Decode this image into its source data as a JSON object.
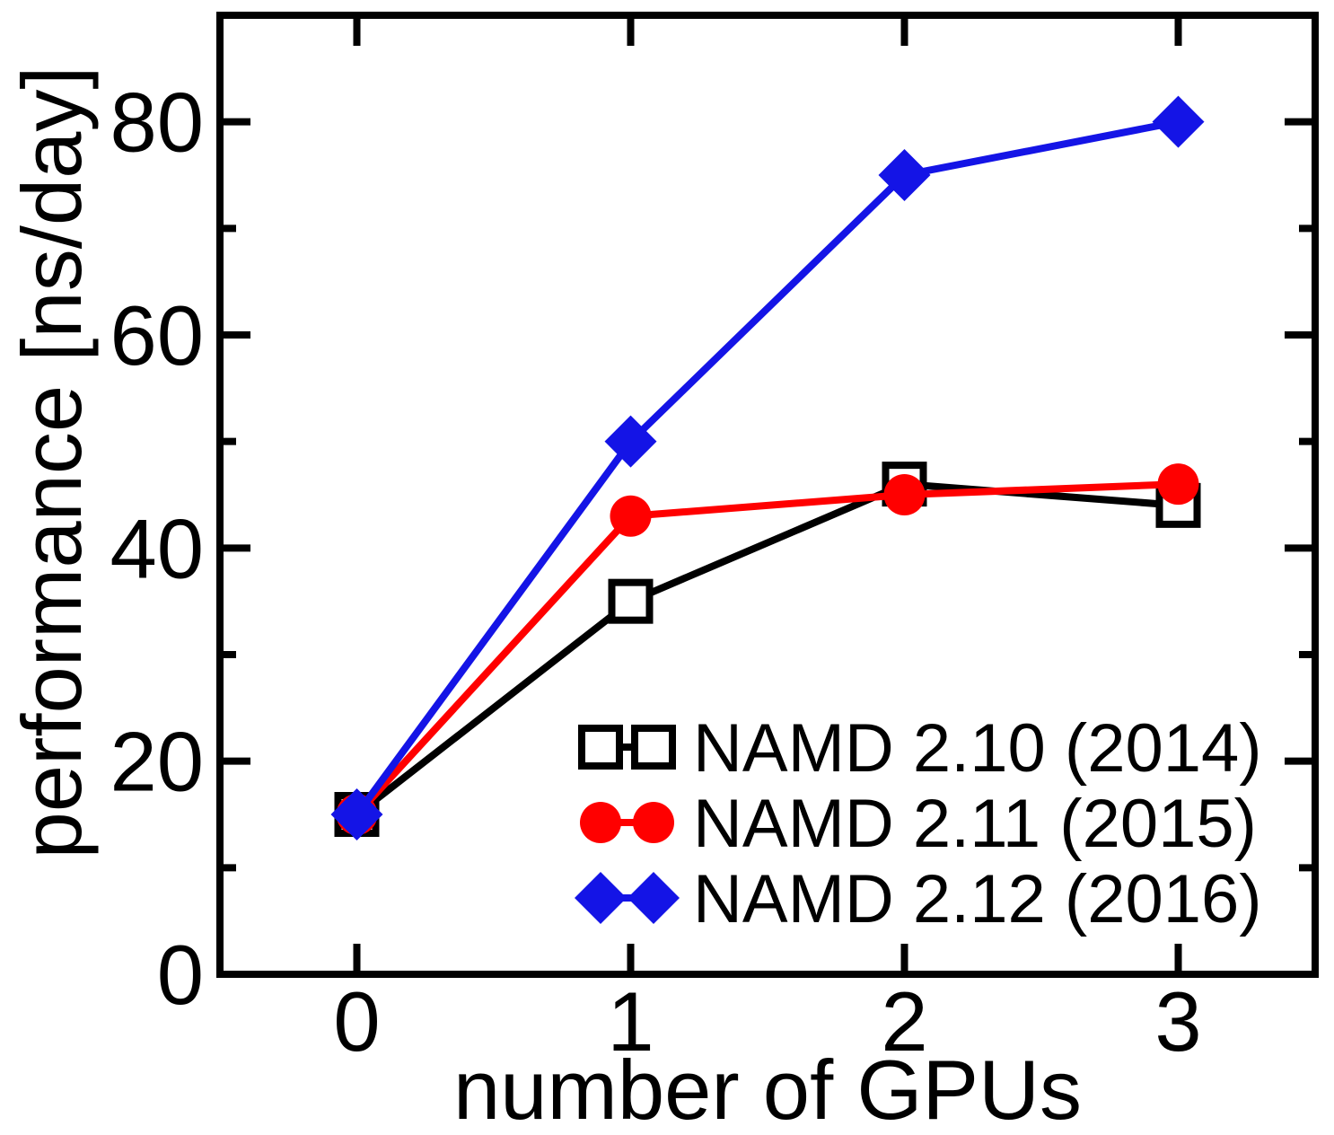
{
  "figure": {
    "background_color": "#ffffff",
    "axis_color": "#000000"
  },
  "chart_data": {
    "type": "line",
    "title": "",
    "xlabel": "number of GPUs",
    "ylabel": "performance [ns/day]",
    "x": [
      0,
      1,
      2,
      3
    ],
    "xlim": [
      -0.5,
      3.5
    ],
    "ylim": [
      0,
      90
    ],
    "x_major_ticks": [
      0,
      1,
      2,
      3
    ],
    "x_tick_labels": [
      "0",
      "1",
      "2",
      "3"
    ],
    "y_major_ticks": [
      0,
      20,
      40,
      60,
      80
    ],
    "y_tick_labels": [
      "0",
      "20",
      "40",
      "60",
      "80"
    ],
    "y_minor_ticks": [
      10,
      30,
      50,
      70
    ],
    "grid": false,
    "frame": "box-with-inward-ticks",
    "legend": {
      "position": "inside-lower-right",
      "border": false
    },
    "series": [
      {
        "name": "NAMD 2.10 (2014)",
        "color": "#000000",
        "marker": "open-square",
        "values": [
          15,
          35,
          46,
          44
        ]
      },
      {
        "name": "NAMD 2.11 (2015)",
        "color": "#ff0000",
        "marker": "filled-circle",
        "values": [
          15,
          43,
          45,
          46
        ]
      },
      {
        "name": "NAMD 2.12 (2016)",
        "color": "#1414e6",
        "marker": "filled-diamond",
        "values": [
          15,
          50,
          75,
          80
        ]
      }
    ]
  }
}
